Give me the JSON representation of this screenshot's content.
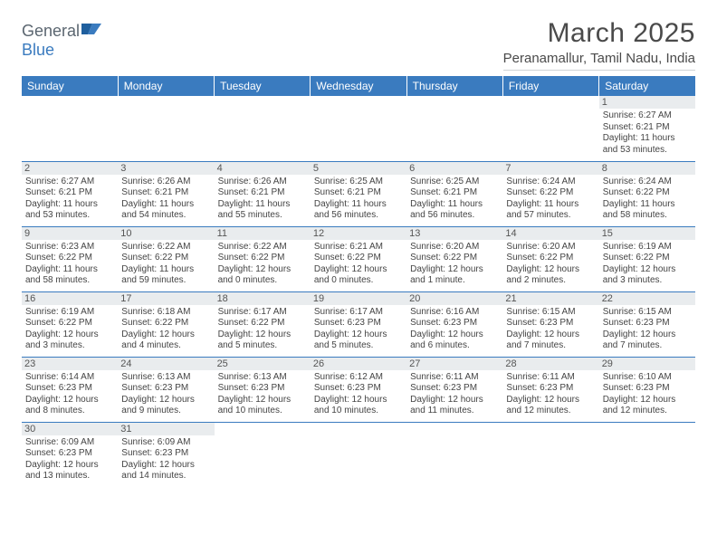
{
  "brand": {
    "name_a": "General",
    "name_b": "Blue"
  },
  "title": "March 2025",
  "location": "Peranamallur, Tamil Nadu, India",
  "header_bg": "#3a7bbf",
  "daynum_bg": "#e9ecee",
  "border_color": "#3a7bbf",
  "weekdays": [
    "Sunday",
    "Monday",
    "Tuesday",
    "Wednesday",
    "Thursday",
    "Friday",
    "Saturday"
  ],
  "first_weekday": 6,
  "days_in_month": 31,
  "cells": {
    "1": {
      "sunrise": "Sunrise: 6:27 AM",
      "sunset": "Sunset: 6:21 PM",
      "daylight": "Daylight: 11 hours and 53 minutes."
    },
    "2": {
      "sunrise": "Sunrise: 6:27 AM",
      "sunset": "Sunset: 6:21 PM",
      "daylight": "Daylight: 11 hours and 53 minutes."
    },
    "3": {
      "sunrise": "Sunrise: 6:26 AM",
      "sunset": "Sunset: 6:21 PM",
      "daylight": "Daylight: 11 hours and 54 minutes."
    },
    "4": {
      "sunrise": "Sunrise: 6:26 AM",
      "sunset": "Sunset: 6:21 PM",
      "daylight": "Daylight: 11 hours and 55 minutes."
    },
    "5": {
      "sunrise": "Sunrise: 6:25 AM",
      "sunset": "Sunset: 6:21 PM",
      "daylight": "Daylight: 11 hours and 56 minutes."
    },
    "6": {
      "sunrise": "Sunrise: 6:25 AM",
      "sunset": "Sunset: 6:21 PM",
      "daylight": "Daylight: 11 hours and 56 minutes."
    },
    "7": {
      "sunrise": "Sunrise: 6:24 AM",
      "sunset": "Sunset: 6:22 PM",
      "daylight": "Daylight: 11 hours and 57 minutes."
    },
    "8": {
      "sunrise": "Sunrise: 6:24 AM",
      "sunset": "Sunset: 6:22 PM",
      "daylight": "Daylight: 11 hours and 58 minutes."
    },
    "9": {
      "sunrise": "Sunrise: 6:23 AM",
      "sunset": "Sunset: 6:22 PM",
      "daylight": "Daylight: 11 hours and 58 minutes."
    },
    "10": {
      "sunrise": "Sunrise: 6:22 AM",
      "sunset": "Sunset: 6:22 PM",
      "daylight": "Daylight: 11 hours and 59 minutes."
    },
    "11": {
      "sunrise": "Sunrise: 6:22 AM",
      "sunset": "Sunset: 6:22 PM",
      "daylight": "Daylight: 12 hours and 0 minutes."
    },
    "12": {
      "sunrise": "Sunrise: 6:21 AM",
      "sunset": "Sunset: 6:22 PM",
      "daylight": "Daylight: 12 hours and 0 minutes."
    },
    "13": {
      "sunrise": "Sunrise: 6:20 AM",
      "sunset": "Sunset: 6:22 PM",
      "daylight": "Daylight: 12 hours and 1 minute."
    },
    "14": {
      "sunrise": "Sunrise: 6:20 AM",
      "sunset": "Sunset: 6:22 PM",
      "daylight": "Daylight: 12 hours and 2 minutes."
    },
    "15": {
      "sunrise": "Sunrise: 6:19 AM",
      "sunset": "Sunset: 6:22 PM",
      "daylight": "Daylight: 12 hours and 3 minutes."
    },
    "16": {
      "sunrise": "Sunrise: 6:19 AM",
      "sunset": "Sunset: 6:22 PM",
      "daylight": "Daylight: 12 hours and 3 minutes."
    },
    "17": {
      "sunrise": "Sunrise: 6:18 AM",
      "sunset": "Sunset: 6:22 PM",
      "daylight": "Daylight: 12 hours and 4 minutes."
    },
    "18": {
      "sunrise": "Sunrise: 6:17 AM",
      "sunset": "Sunset: 6:22 PM",
      "daylight": "Daylight: 12 hours and 5 minutes."
    },
    "19": {
      "sunrise": "Sunrise: 6:17 AM",
      "sunset": "Sunset: 6:23 PM",
      "daylight": "Daylight: 12 hours and 5 minutes."
    },
    "20": {
      "sunrise": "Sunrise: 6:16 AM",
      "sunset": "Sunset: 6:23 PM",
      "daylight": "Daylight: 12 hours and 6 minutes."
    },
    "21": {
      "sunrise": "Sunrise: 6:15 AM",
      "sunset": "Sunset: 6:23 PM",
      "daylight": "Daylight: 12 hours and 7 minutes."
    },
    "22": {
      "sunrise": "Sunrise: 6:15 AM",
      "sunset": "Sunset: 6:23 PM",
      "daylight": "Daylight: 12 hours and 7 minutes."
    },
    "23": {
      "sunrise": "Sunrise: 6:14 AM",
      "sunset": "Sunset: 6:23 PM",
      "daylight": "Daylight: 12 hours and 8 minutes."
    },
    "24": {
      "sunrise": "Sunrise: 6:13 AM",
      "sunset": "Sunset: 6:23 PM",
      "daylight": "Daylight: 12 hours and 9 minutes."
    },
    "25": {
      "sunrise": "Sunrise: 6:13 AM",
      "sunset": "Sunset: 6:23 PM",
      "daylight": "Daylight: 12 hours and 10 minutes."
    },
    "26": {
      "sunrise": "Sunrise: 6:12 AM",
      "sunset": "Sunset: 6:23 PM",
      "daylight": "Daylight: 12 hours and 10 minutes."
    },
    "27": {
      "sunrise": "Sunrise: 6:11 AM",
      "sunset": "Sunset: 6:23 PM",
      "daylight": "Daylight: 12 hours and 11 minutes."
    },
    "28": {
      "sunrise": "Sunrise: 6:11 AM",
      "sunset": "Sunset: 6:23 PM",
      "daylight": "Daylight: 12 hours and 12 minutes."
    },
    "29": {
      "sunrise": "Sunrise: 6:10 AM",
      "sunset": "Sunset: 6:23 PM",
      "daylight": "Daylight: 12 hours and 12 minutes."
    },
    "30": {
      "sunrise": "Sunrise: 6:09 AM",
      "sunset": "Sunset: 6:23 PM",
      "daylight": "Daylight: 12 hours and 13 minutes."
    },
    "31": {
      "sunrise": "Sunrise: 6:09 AM",
      "sunset": "Sunset: 6:23 PM",
      "daylight": "Daylight: 12 hours and 14 minutes."
    }
  }
}
